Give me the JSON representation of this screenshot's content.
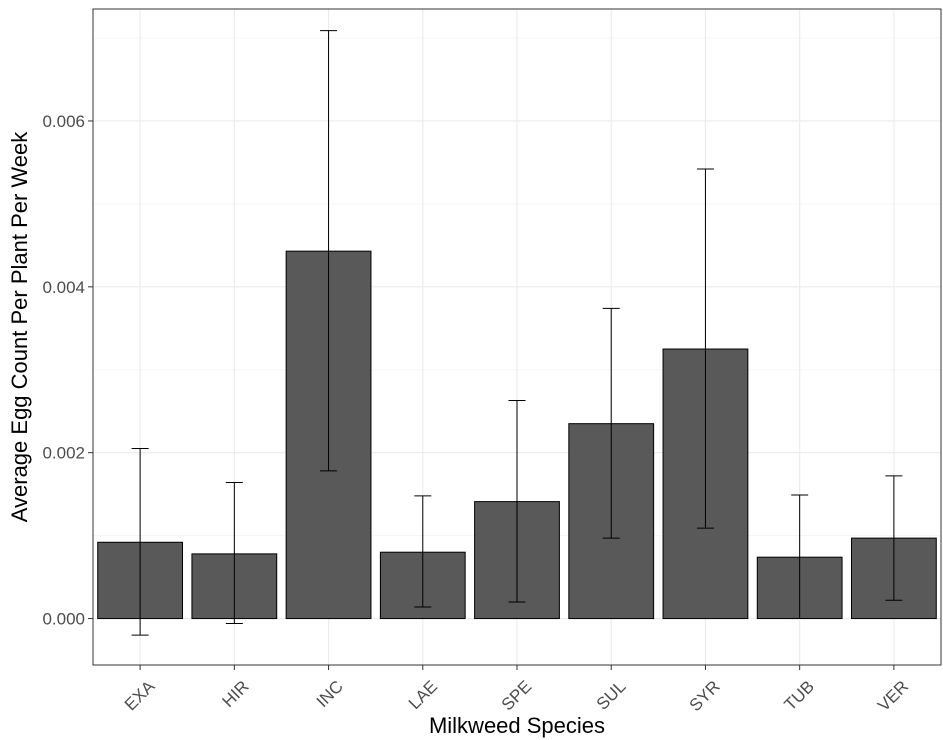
{
  "chart_data": {
    "type": "bar",
    "title": "",
    "xlabel": "Milkweed Species",
    "ylabel": "Average Egg Count Per Plant Per Week",
    "categories": [
      "EXA",
      "HIR",
      "INC",
      "LAE",
      "SPE",
      "SUL",
      "SYR",
      "TUB",
      "VER"
    ],
    "values": [
      0.00092,
      0.00078,
      0.00443,
      0.0008,
      0.00141,
      0.00235,
      0.00325,
      0.00074,
      0.00097
    ],
    "error_low": [
      -0.0002,
      -6e-05,
      0.00178,
      0.00014,
      0.0002,
      0.00097,
      0.00109,
      0.0,
      0.00022
    ],
    "error_high": [
      0.00205,
      0.00164,
      0.00709,
      0.00148,
      0.00263,
      0.00374,
      0.00542,
      0.00149,
      0.00172
    ],
    "ylim": [
      -0.00056,
      0.00735
    ],
    "yticks": [
      0.0,
      0.002,
      0.004,
      0.006
    ],
    "ytick_labels": [
      "0.000",
      "0.002",
      "0.004",
      "0.006"
    ],
    "grid": true,
    "legend": "none",
    "colors": {
      "bar_fill": "#595959",
      "bar_stroke": "#000000",
      "grid_major": "#ebebeb",
      "grid_minor": "#f5f5f5",
      "panel_border": "#333333"
    }
  }
}
